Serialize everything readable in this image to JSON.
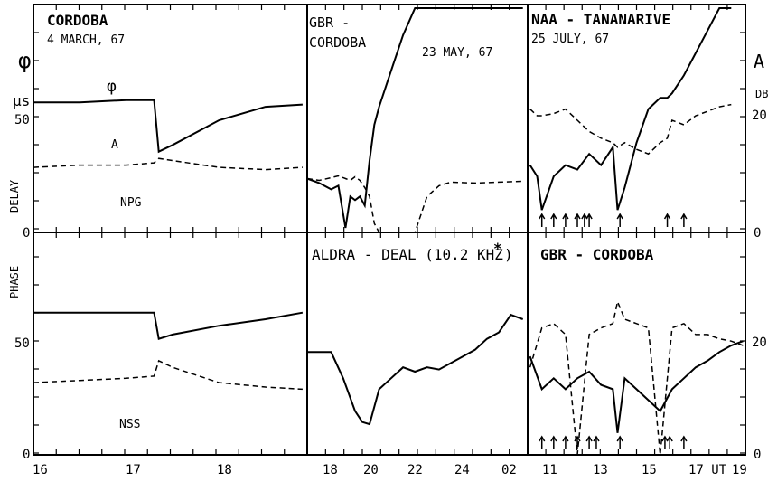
{
  "chart_data": [
    {
      "type": "line",
      "panel": "top-left",
      "title": "CORDOBA",
      "subtitle": "4 MARCH, 67",
      "ylabel": "DELAY",
      "x": [
        16.0,
        16.5,
        17.0,
        17.3,
        17.35,
        17.5,
        18.0,
        18.5,
        18.9
      ],
      "series": [
        {
          "name": "φ",
          "dash": "solid",
          "values": [
            58,
            58,
            59,
            59,
            36,
            39,
            50,
            56,
            57
          ]
        },
        {
          "name": "A",
          "dash": "dashed",
          "values": [
            29,
            30,
            30,
            31,
            33,
            32,
            29,
            28,
            29
          ]
        }
      ],
      "annotations": [
        "φ",
        "A",
        "NPG"
      ]
    },
    {
      "type": "line",
      "panel": "top-middle",
      "title": "GBR - CORDOBA",
      "subtitle": "23 MAY, 67",
      "x": [
        17.0,
        17.5,
        18.0,
        18.3,
        18.6,
        18.8,
        19.0,
        19.2,
        19.4,
        19.6,
        19.8,
        20.0,
        20.5,
        21.0,
        21.5,
        22.0,
        22.5,
        23.0,
        24.0,
        25.0,
        26.0
      ],
      "series": [
        {
          "dash": "solid",
          "values": [
            60,
            55,
            48,
            52,
            5,
            40,
            36,
            40,
            30,
            80,
            120,
            140,
            180,
            220,
            250,
            255,
            255,
            255,
            255,
            254,
            253
          ]
        },
        {
          "dash": "dashed",
          "values": [
            60,
            58,
            61,
            63,
            60,
            58,
            62,
            58,
            50,
            40,
            10,
            -100,
            -300,
            -300,
            -100,
            40,
            52,
            56,
            55,
            56,
            57
          ]
        }
      ]
    },
    {
      "type": "line",
      "panel": "top-right",
      "title": "NAA - TANANARIVE",
      "subtitle": "25 JULY, 67",
      "ylabel_right": "A",
      "ylabel_right_unit": "DB",
      "x": [
        10.5,
        10.8,
        11.0,
        11.5,
        12.0,
        12.5,
        13.0,
        13.5,
        14.0,
        14.2,
        14.5,
        15.0,
        15.5,
        16.0,
        16.3,
        16.5,
        17.0,
        17.5,
        18.0,
        18.5,
        19.0
      ],
      "series": [
        {
          "dash": "solid",
          "values": [
            30,
            25,
            10,
            25,
            30,
            28,
            35,
            30,
            38,
            10,
            20,
            40,
            55,
            60,
            60,
            62,
            70,
            80,
            90,
            100,
            110
          ]
        },
        {
          "dash": "dashed",
          "values": [
            55,
            52,
            52,
            53,
            55,
            50,
            45,
            42,
            40,
            38,
            40,
            37,
            35,
            40,
            42,
            50,
            48,
            52,
            54,
            56,
            57
          ]
        }
      ],
      "arrow_times": [
        11.0,
        11.5,
        12.0,
        12.5,
        12.8,
        13.0,
        14.3,
        16.3,
        17.0
      ]
    },
    {
      "type": "line",
      "panel": "bottom-left",
      "annotations": [
        "NSS"
      ],
      "ylabel": "PHASE",
      "x": [
        16.0,
        16.5,
        17.0,
        17.3,
        17.35,
        17.5,
        18.0,
        18.5,
        18.9
      ],
      "series": [
        {
          "dash": "solid",
          "values": [
            65,
            65,
            65,
            65,
            53,
            55,
            59,
            62,
            65
          ]
        },
        {
          "dash": "dashed",
          "values": [
            33,
            34,
            35,
            36,
            43,
            40,
            33,
            31,
            30
          ]
        }
      ]
    },
    {
      "type": "line",
      "panel": "bottom-middle",
      "title": "ALDRA - DEAL (10.2 KHZ*)",
      "x": [
        17.0,
        18.0,
        18.5,
        19.0,
        19.3,
        19.6,
        20.0,
        20.5,
        21.0,
        21.5,
        22.0,
        22.5,
        23.0,
        23.5,
        24.0,
        24.5,
        25.0,
        25.5,
        26.0
      ],
      "series": [
        {
          "dash": "solid",
          "values": [
            47,
            47,
            35,
            20,
            15,
            14,
            30,
            35,
            40,
            38,
            40,
            39,
            42,
            45,
            48,
            53,
            56,
            64,
            62
          ]
        }
      ]
    },
    {
      "type": "line",
      "panel": "bottom-right",
      "title": "GBR - CORDOBA",
      "x": [
        10.5,
        11.0,
        11.5,
        12.0,
        12.5,
        13.0,
        13.5,
        14.0,
        14.2,
        14.5,
        15.0,
        15.5,
        16.0,
        16.5,
        17.0,
        17.5,
        18.0,
        18.5,
        19.0,
        19.5
      ],
      "series": [
        {
          "dash": "solid",
          "values": [
            45,
            30,
            35,
            30,
            35,
            38,
            32,
            30,
            10,
            35,
            30,
            25,
            20,
            30,
            35,
            40,
            43,
            47,
            50,
            52
          ]
        },
        {
          "dash": "dashed",
          "values": [
            40,
            58,
            60,
            55,
            0,
            55,
            58,
            60,
            70,
            62,
            60,
            58,
            0,
            58,
            60,
            55,
            55,
            53,
            52,
            50
          ]
        }
      ],
      "arrow_times": [
        11.0,
        11.5,
        12.0,
        12.5,
        13.0,
        13.3,
        14.3,
        16.2,
        16.4,
        17.0
      ]
    }
  ],
  "axes": {
    "left_y_title": "φ",
    "left_y_unit": "μs",
    "left_y_ticks": [
      "50",
      "0",
      "50",
      "0"
    ],
    "right_y_ticks": [
      "20",
      "0",
      "20",
      "0"
    ],
    "x_ticks_left": [
      "16",
      "17",
      "18"
    ],
    "x_ticks_middle": [
      "18",
      "20",
      "22",
      "24",
      "02"
    ],
    "x_ticks_right": [
      "11",
      "13",
      "15",
      "17 UT",
      "19"
    ]
  },
  "labels": {
    "cordoba": "CORDOBA",
    "cordoba_date": "4 MARCH, 67",
    "phi_curve": "φ",
    "a_curve": "A",
    "npg": "NPG",
    "gbr_cordoba_1": "GBR -",
    "gbr_cordoba_2": "CORDOBA",
    "may_date": "23 MAY, 67",
    "naa": "NAA - TANANARIVE",
    "july_date": "25 JULY, 67",
    "right_A": "A",
    "right_db": "DB",
    "nss": "NSS",
    "aldra": "ALDRA - DEAL (10.2 KHZ",
    "aldra_star": "*",
    "aldra_close": ")",
    "gbr_cordoba_bottom": "GBR - CORDOBA",
    "delay": "DELAY",
    "phase": "PHASE"
  }
}
